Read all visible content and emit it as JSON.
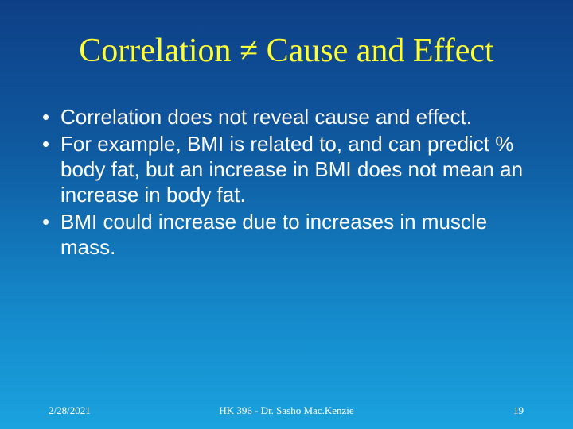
{
  "slide": {
    "title": "Correlation ≠ Cause and Effect",
    "bullet_symbol": "•",
    "bullets": [
      "Correlation does not reveal cause and effect.",
      "For example, BMI is related to, and can predict % body fat, but an increase in BMI does not mean an increase in body fat.",
      "BMI could increase due to increases in muscle mass."
    ],
    "footer": {
      "date": "2/28/2021",
      "center": "HK 396 - Dr. Sasho Mac.Kenzie",
      "page": "19"
    }
  }
}
